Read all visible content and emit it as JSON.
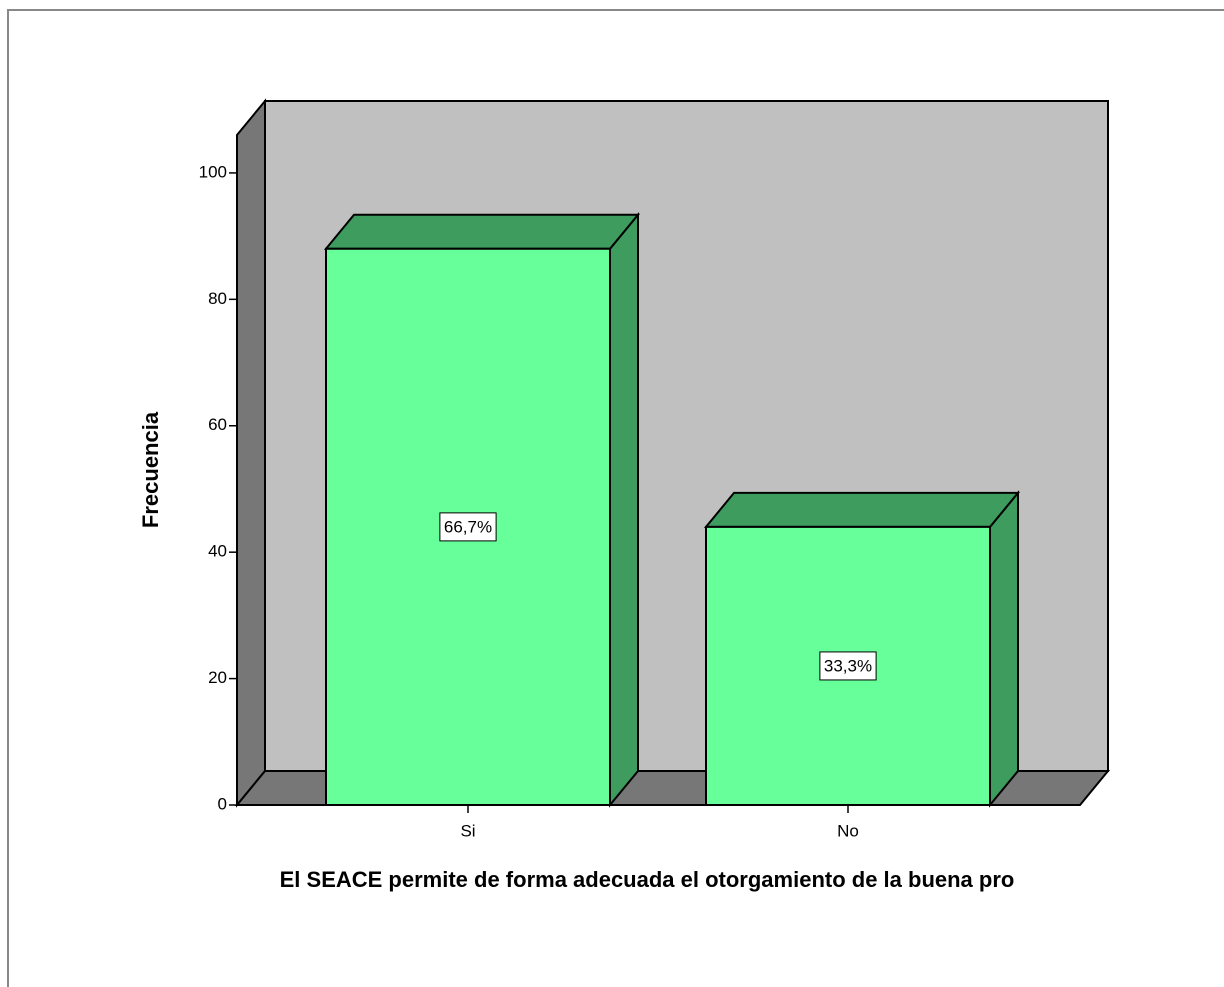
{
  "chart_data": {
    "type": "bar3d",
    "xlabel": "El SEACE permite de forma adecuada el otorgamiento de la buena pro",
    "ylabel": "Frecuencia",
    "categories": [
      "Si",
      "No"
    ],
    "values": [
      88,
      44
    ],
    "percents": [
      66.7,
      33.3
    ],
    "percent_labels": [
      "66,7%",
      "33,3%"
    ],
    "color": "#66ff99",
    "side_color": "#3d9c5e",
    "ylim": [
      0,
      106
    ],
    "yticks": [
      0,
      20,
      40,
      60,
      80,
      100
    ]
  }
}
